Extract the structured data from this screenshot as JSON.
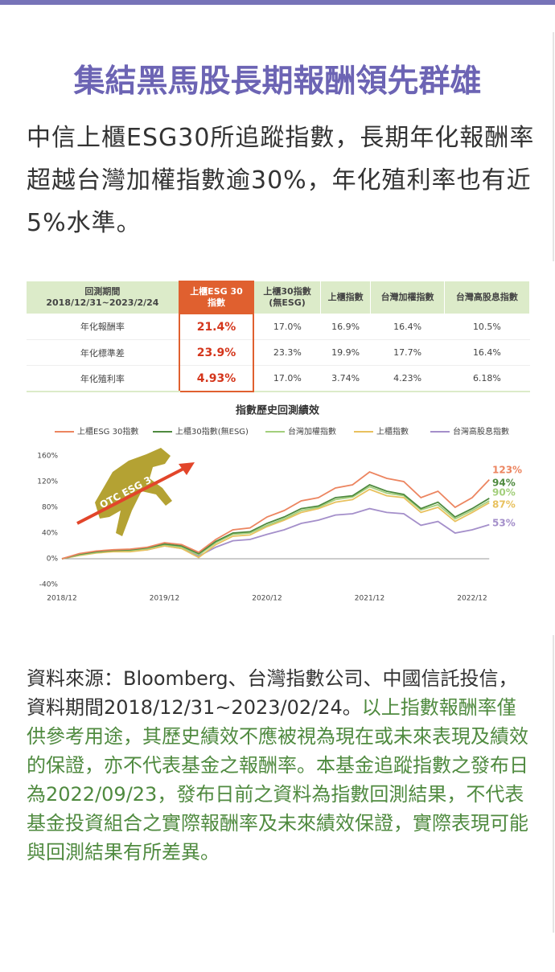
{
  "header": {
    "title": "集結黑馬股長期報酬領先群雄"
  },
  "intro": "中信上櫃ESG30所追蹤指數，長期年化報酬率超越台灣加權指數逾30%，年化殖利率也有近5%水準。",
  "table": {
    "header": [
      [
        "回測期間",
        "2018/12/31~2023/2/24"
      ],
      [
        "上櫃ESG 30",
        "指數"
      ],
      [
        "上櫃30指數",
        "(無ESG)"
      ],
      [
        "上櫃指數"
      ],
      [
        "台灣加權指數"
      ],
      [
        "台灣高股息指數"
      ]
    ],
    "rows": [
      [
        "年化報酬率",
        "21.4%",
        "17.0%",
        "16.9%",
        "16.4%",
        "10.5%"
      ],
      [
        "年化標準差",
        "23.9%",
        "23.3%",
        "19.9%",
        "17.7%",
        "16.4%"
      ],
      [
        "年化殖利率",
        "4.93%",
        "17.0%",
        "3.74%",
        "4.23%",
        "6.18%"
      ]
    ]
  },
  "chart_data": {
    "type": "line",
    "title": "指數歷史回測績效",
    "logo_text": "OTC ESG 30",
    "x": [
      "2018/12",
      "2019/02",
      "2019/04",
      "2019/06",
      "2019/08",
      "2019/10",
      "2019/12",
      "2020/02",
      "2020/04",
      "2020/06",
      "2020/08",
      "2020/10",
      "2020/12",
      "2021/02",
      "2021/04",
      "2021/06",
      "2021/08",
      "2021/10",
      "2021/12",
      "2022/02",
      "2022/04",
      "2022/06",
      "2022/08",
      "2022/10",
      "2022/12",
      "2023/02"
    ],
    "xticks": [
      "2018/12",
      "2019/12",
      "2020/12",
      "2021/12",
      "2022/12"
    ],
    "ylim": [
      -40,
      160
    ],
    "yticks": [
      {
        "value": -40,
        "label": "-40%"
      },
      {
        "value": 0,
        "label": "0%"
      },
      {
        "value": 40,
        "label": "40%"
      },
      {
        "value": 80,
        "label": "80%"
      },
      {
        "value": 120,
        "label": "120%"
      },
      {
        "value": 160,
        "label": "160%"
      }
    ],
    "series": [
      {
        "name": "上櫃ESG 30指數",
        "color": "#ec8560",
        "end_label": "123%",
        "values": [
          0,
          8,
          12,
          14,
          15,
          18,
          25,
          22,
          10,
          30,
          45,
          48,
          65,
          75,
          90,
          95,
          110,
          115,
          135,
          125,
          120,
          95,
          105,
          80,
          95,
          123
        ]
      },
      {
        "name": "上櫃30指數(無ESG)",
        "color": "#4f8a3f",
        "end_label": "94%",
        "values": [
          0,
          7,
          11,
          13,
          14,
          17,
          23,
          20,
          8,
          27,
          40,
          42,
          55,
          65,
          78,
          82,
          95,
          98,
          115,
          105,
          100,
          78,
          88,
          65,
          78,
          94
        ]
      },
      {
        "name": "台灣加權指數",
        "color": "#a3cf7c",
        "end_label": "90%",
        "values": [
          0,
          6,
          10,
          13,
          13,
          16,
          22,
          18,
          6,
          25,
          38,
          40,
          52,
          62,
          75,
          80,
          92,
          96,
          112,
          102,
          98,
          76,
          84,
          62,
          75,
          90
        ]
      },
      {
        "name": "上櫃指數",
        "color": "#e8c15e",
        "end_label": "87%",
        "values": [
          0,
          5,
          9,
          11,
          11,
          14,
          20,
          16,
          2,
          22,
          35,
          37,
          50,
          60,
          72,
          78,
          88,
          92,
          108,
          98,
          95,
          72,
          80,
          58,
          72,
          87
        ]
      },
      {
        "name": "台灣高股息指數",
        "color": "#a48fca",
        "end_label": "53%",
        "values": [
          0,
          6,
          10,
          12,
          12,
          14,
          20,
          16,
          4,
          18,
          28,
          30,
          38,
          45,
          55,
          60,
          68,
          70,
          78,
          72,
          70,
          52,
          58,
          40,
          45,
          53
        ]
      }
    ]
  },
  "source": {
    "plain": "資料來源：Bloomberg、台灣指數公司、中國信託投信，資料期間2018/12/31~2023/02/24。",
    "notice": "以上指數報酬率僅供參考用途，其歷史績效不應被視為現在或未來表現及績效的保證，亦不代表基金之報酬率。本基金追蹤指數之發布日為2022/09/23，發布日前之資料為指數回測結果，不代表基金投資組合之實際報酬率及未來績效保證，實際表現可能與回測結果有所差異。"
  }
}
